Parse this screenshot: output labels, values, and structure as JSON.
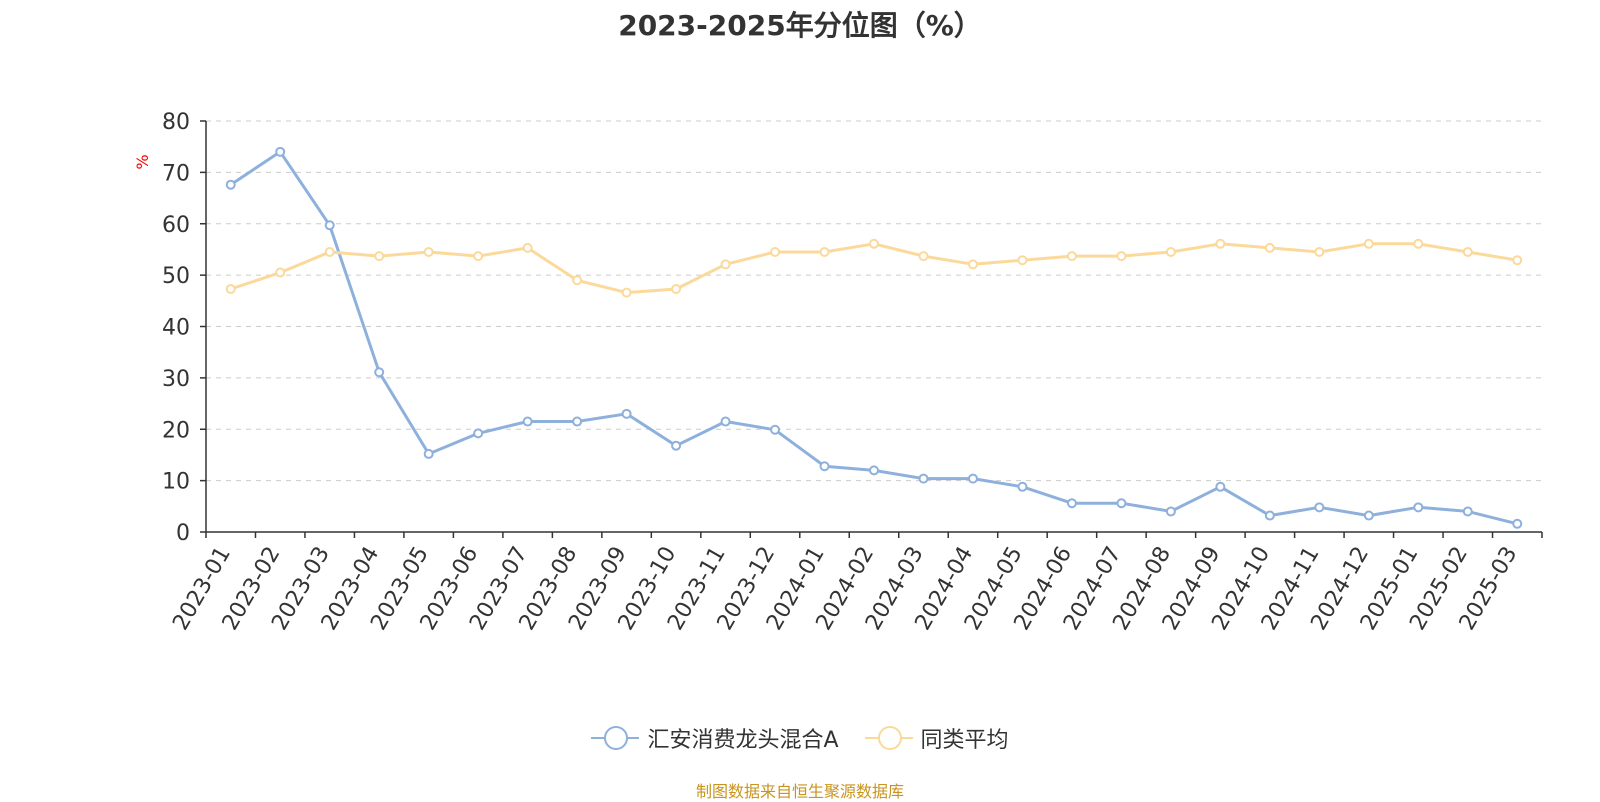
{
  "chart_data": {
    "type": "line",
    "title": "2023-2025年分位图（%）",
    "ylabel": "%",
    "ylim": [
      0,
      80
    ],
    "yticks": [
      0,
      10,
      20,
      30,
      40,
      50,
      60,
      70,
      80
    ],
    "grid": true,
    "legend_position": "bottom",
    "categories": [
      "2023-01",
      "2023-02",
      "2023-03",
      "2023-04",
      "2023-05",
      "2023-06",
      "2023-07",
      "2023-08",
      "2023-09",
      "2023-10",
      "2023-11",
      "2023-12",
      "2024-01",
      "2024-02",
      "2024-03",
      "2024-04",
      "2024-05",
      "2024-06",
      "2024-07",
      "2024-08",
      "2024-09",
      "2024-10",
      "2024-11",
      "2024-12",
      "2025-01",
      "2025-02",
      "2025-03"
    ],
    "series": [
      {
        "name": "汇安消费龙头混合A",
        "color": "#8eb0dc",
        "values": [
          67.6,
          74.0,
          59.7,
          31.1,
          15.2,
          19.2,
          21.5,
          21.5,
          23.0,
          16.8,
          21.5,
          19.9,
          12.8,
          12.0,
          10.4,
          10.4,
          8.8,
          5.6,
          5.6,
          4.0,
          8.8,
          3.2,
          4.8,
          3.2,
          4.8,
          4.0,
          1.6
        ]
      },
      {
        "name": "同类平均",
        "color": "#fbd99a",
        "values": [
          47.3,
          50.5,
          54.5,
          53.7,
          54.5,
          53.7,
          55.3,
          49.0,
          46.6,
          47.3,
          52.1,
          54.5,
          54.5,
          56.1,
          53.7,
          52.1,
          52.9,
          53.7,
          53.7,
          54.5,
          56.1,
          55.3,
          54.5,
          56.1,
          56.1,
          54.5,
          52.9
        ]
      }
    ]
  },
  "colors": {
    "axis": "#333333",
    "grid": "#cccccc",
    "ylabel": "#ff0000",
    "source": "#c8941f"
  },
  "footer": {
    "source": "制图数据来自恒生聚源数据库"
  }
}
